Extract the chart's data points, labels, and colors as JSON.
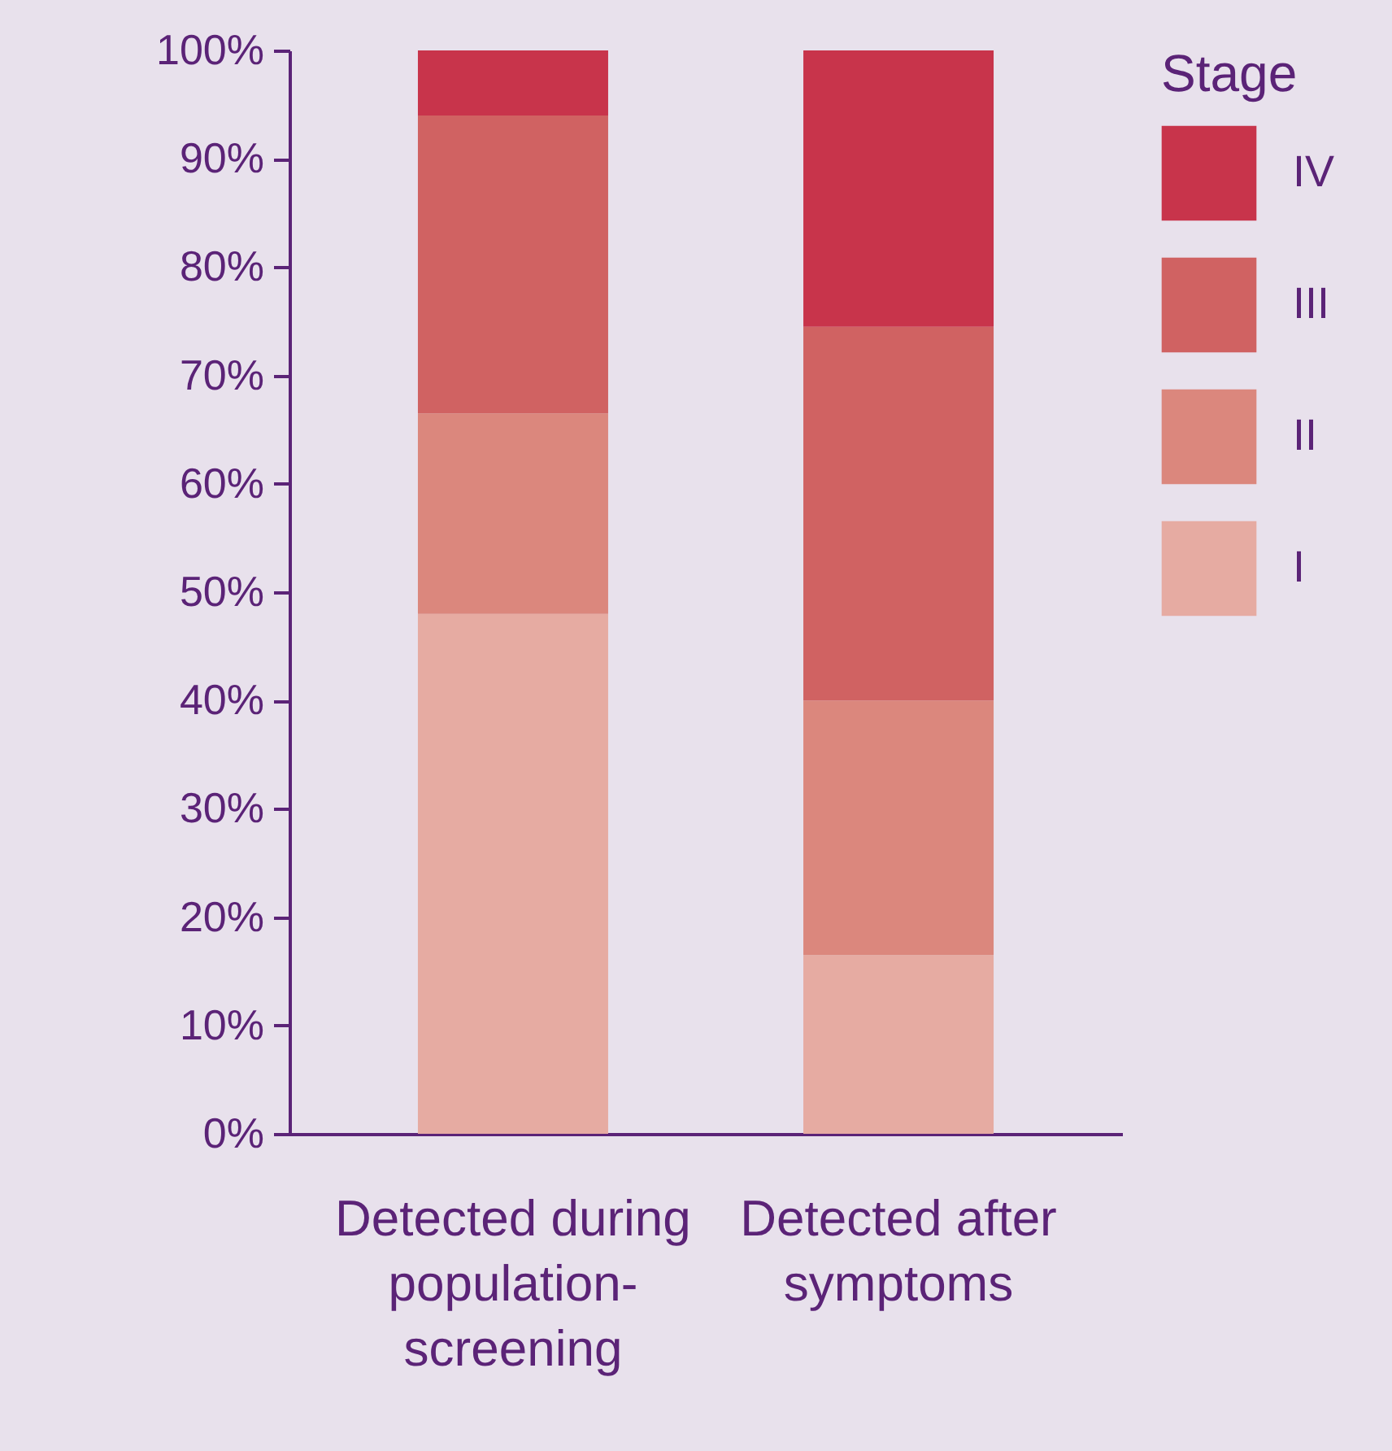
{
  "chart_data": {
    "type": "bar",
    "stacked": true,
    "legend": "right",
    "legend_title": "Stage",
    "grid": false,
    "categories": [
      "Detected during\npopulation-\nscreening",
      "Detected after\nsymptoms"
    ],
    "ylim": [
      0,
      100
    ],
    "yticks": [
      {
        "value": 0,
        "label": "0%"
      },
      {
        "value": 10,
        "label": "10%"
      },
      {
        "value": 20,
        "label": "20%"
      },
      {
        "value": 30,
        "label": "30%"
      },
      {
        "value": 40,
        "label": "40%"
      },
      {
        "value": 50,
        "label": "50%"
      },
      {
        "value": 60,
        "label": "60%"
      },
      {
        "value": 70,
        "label": "70%"
      },
      {
        "value": 80,
        "label": "80%"
      },
      {
        "value": 90,
        "label": "90%"
      },
      {
        "value": 100,
        "label": "100%"
      }
    ],
    "series": [
      {
        "name": "I",
        "color": "#e6aba2",
        "values": [
          48,
          16.5
        ]
      },
      {
        "name": "II",
        "color": "#db877d",
        "values": [
          18.5,
          23.5
        ]
      },
      {
        "name": "III",
        "color": "#d06262",
        "values": [
          27.5,
          34.5
        ]
      },
      {
        "name": "IV",
        "color": "#c8344b",
        "values": [
          6,
          25.5
        ]
      }
    ]
  }
}
